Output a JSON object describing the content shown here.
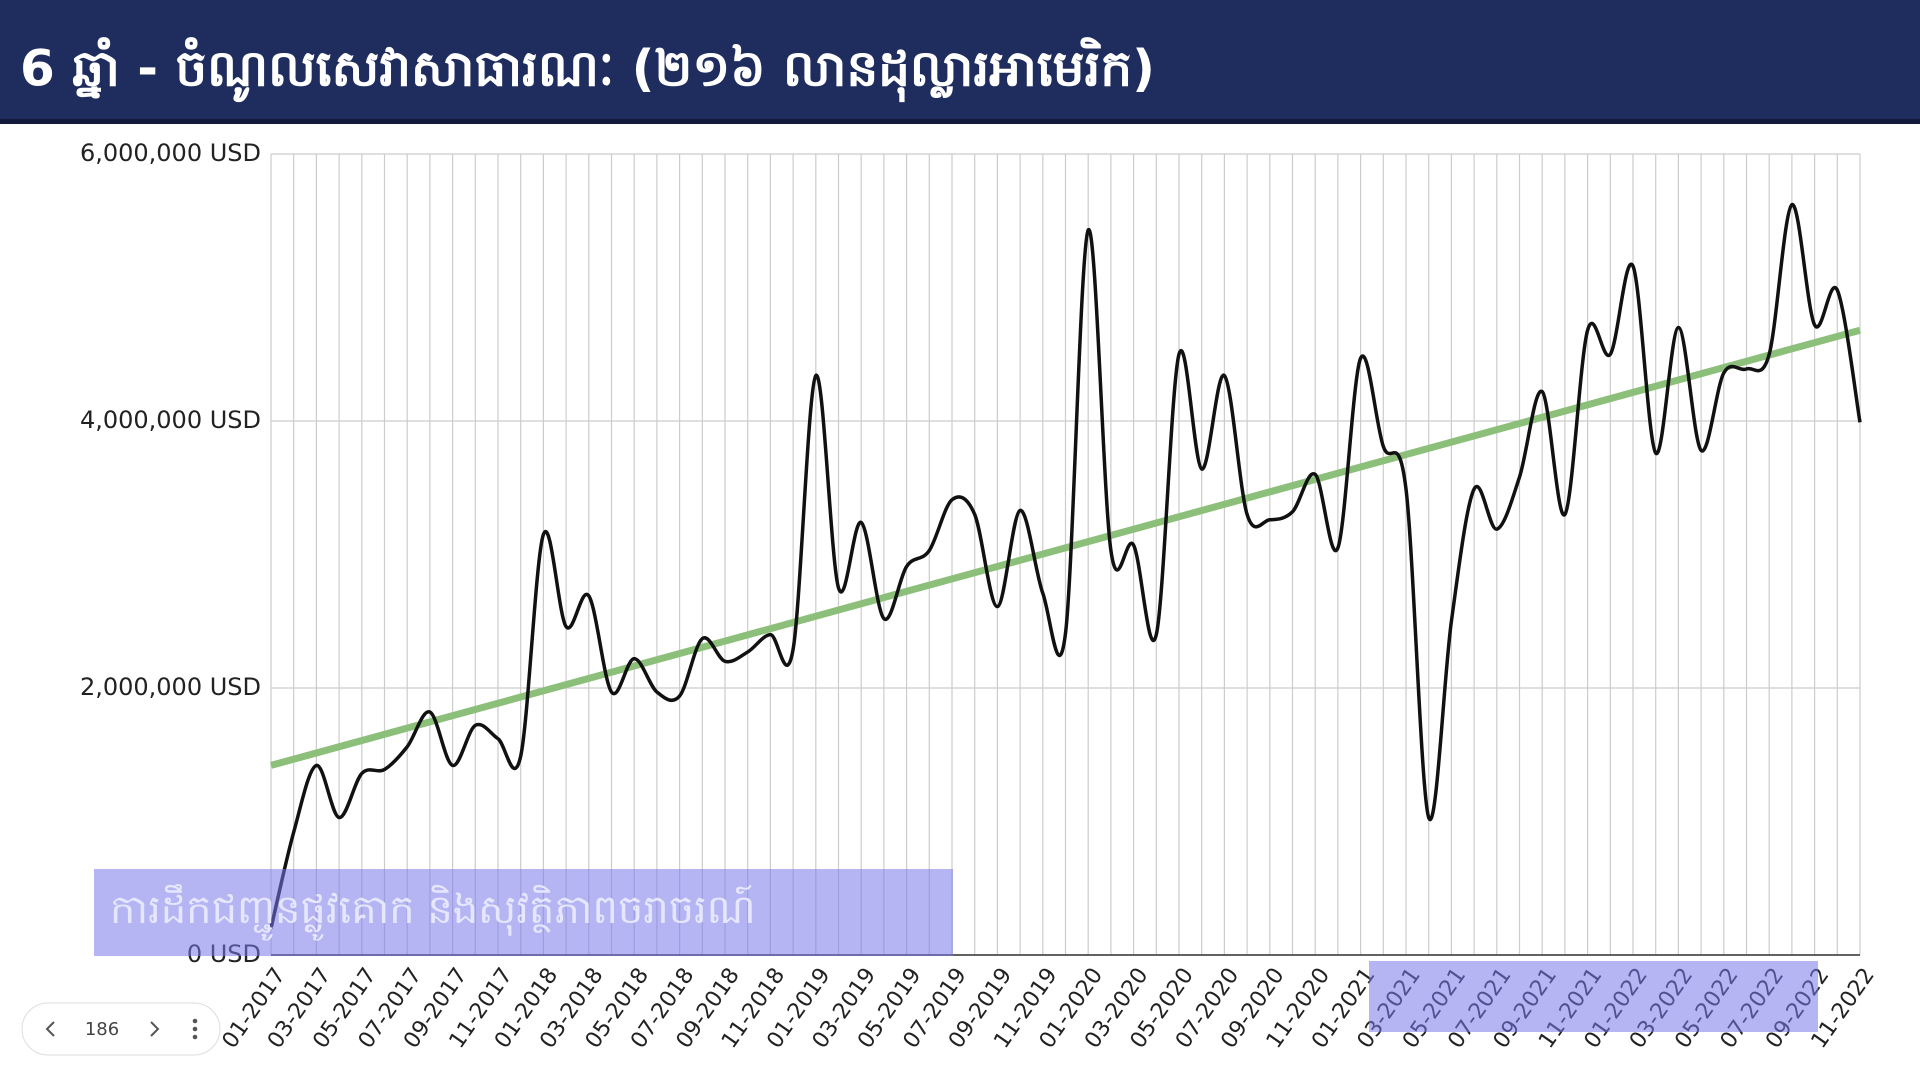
{
  "chart_data": {
    "type": "line",
    "title": "6 ឆ្នាំ - ចំណូលសេវាសាធារណៈ (២១៦ លានដុល្លារអាមេរិក)",
    "categories": [
      "01-2017",
      null,
      "03-2017",
      null,
      "05-2017",
      null,
      "07-2017",
      null,
      "09-2017",
      null,
      "11-2017",
      null,
      "01-2018",
      null,
      "03-2018",
      null,
      "05-2018",
      null,
      "07-2018",
      null,
      "09-2018",
      null,
      "11-2018",
      null,
      "01-2019",
      null,
      "03-2019",
      null,
      "05-2019",
      null,
      "07-2019",
      null,
      "09-2019",
      null,
      "11-2019",
      null,
      "01-2020",
      null,
      "03-2020",
      null,
      "05-2020",
      null,
      "07-2020",
      null,
      "09-2020",
      null,
      "11-2020",
      null,
      "01-2021",
      null,
      "03-2021",
      null,
      "05-2021",
      null,
      "07-2021",
      null,
      "09-2021",
      null,
      "11-2021",
      null,
      "01-2022",
      null,
      "03-2022",
      null,
      "05-2022",
      null,
      "07-2022",
      null,
      "09-2022",
      null,
      "11-2022"
    ],
    "series": [
      {
        "color": "#111111",
        "values": [
          200000,
          920000,
          1420000,
          1030000,
          1360000,
          1390000,
          1560000,
          1820000,
          1420000,
          1720000,
          1620000,
          1490000,
          3150000,
          2460000,
          2690000,
          1970000,
          2220000,
          1970000,
          1940000,
          2370000,
          2200000,
          2270000,
          2400000,
          2290000,
          4340000,
          2750000,
          3240000,
          2520000,
          2910000,
          3030000,
          3410000,
          3300000,
          2610000,
          3330000,
          2710000,
          2410000,
          5430000,
          3030000,
          3070000,
          2400000,
          4500000,
          3640000,
          4340000,
          3300000,
          3260000,
          3320000,
          3600000,
          3050000,
          4470000,
          3810000,
          3490000,
          1030000,
          2500000,
          3490000,
          3190000,
          3580000,
          4220000,
          3300000,
          4680000,
          4500000,
          5160000,
          3760000,
          4700000,
          3780000,
          4360000,
          4390000,
          4500000,
          5620000,
          4720000,
          4980000,
          3990000
        ]
      }
    ],
    "trendline": {
      "color": "#8cc07a",
      "values": [
        1420000,
        4680000
      ]
    },
    "ylim": [
      0,
      6000000
    ],
    "yticks": [
      {
        "value": 0,
        "label": "0 USD"
      },
      {
        "value": 2000000,
        "label": "2,000,000 USD"
      },
      {
        "value": 4000000,
        "label": "4,000,000 USD"
      },
      {
        "value": 6000000,
        "label": "6,000,000 USD"
      }
    ],
    "grid": true,
    "annotation": "ការដឹកជញ្ជូនផ្លូវគោក និងសុវត្ថិភាពចរាចរណ៍"
  },
  "viewer": {
    "page": 186
  }
}
